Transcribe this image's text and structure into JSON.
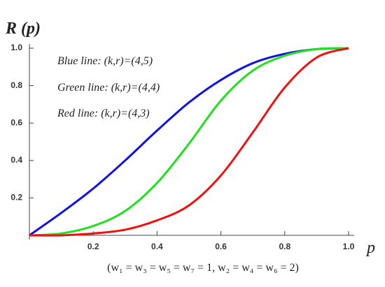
{
  "chart_data": {
    "type": "line",
    "y_label": "R (p)",
    "x_label": "p",
    "annotations": [
      "Blue line: (k,r)=(4,5)",
      "Green line: (k,r)=(4,4)",
      "Red line: (k,r)=(4,3)"
    ],
    "footnote": "(w₁ = w₃ = w₅ = w₇ = 1, w₂ = w₄ = w₆ = 2)",
    "x": [
      0,
      0.1,
      0.2,
      0.3,
      0.4,
      0.5,
      0.6,
      0.7,
      0.8,
      0.9,
      1
    ],
    "series": [
      {
        "name": "Blue line",
        "color": "#1010e0",
        "values": [
          0,
          0.12,
          0.25,
          0.4,
          0.56,
          0.71,
          0.83,
          0.92,
          0.97,
          0.995,
          1
        ]
      },
      {
        "name": "Green line",
        "color": "#20e020",
        "values": [
          0,
          0.01,
          0.05,
          0.13,
          0.28,
          0.49,
          0.72,
          0.88,
          0.96,
          0.995,
          1
        ]
      },
      {
        "name": "Red line",
        "color": "#f01010",
        "values": [
          0,
          0,
          0.01,
          0.03,
          0.08,
          0.16,
          0.32,
          0.55,
          0.79,
          0.95,
          1
        ]
      }
    ],
    "xlim": [
      0,
      1
    ],
    "ylim": [
      0,
      1
    ],
    "xticks": [
      0.2,
      0.4,
      0.6,
      0.8,
      {
        "value": 1,
        "label": "1.0"
      }
    ],
    "yticks": [
      0.2,
      0.4,
      0.6,
      0.8,
      {
        "value": 1,
        "label": "1.0"
      }
    ]
  }
}
